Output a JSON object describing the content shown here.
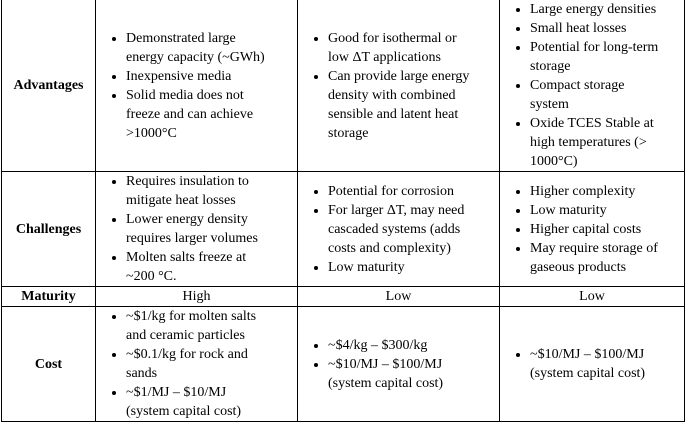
{
  "table": {
    "rows": [
      {
        "id": "advantages",
        "label": "Advantages",
        "cells": [
          {
            "type": "bullets",
            "items": [
              "Demonstrated large\nenergy capacity (~GWh)",
              "Inexpensive media",
              "Solid media does not\nfreeze and can achieve\n>1000°C"
            ]
          },
          {
            "type": "bullets",
            "items": [
              "Good for isothermal or\nlow ΔT applications",
              "Can provide large energy\ndensity with combined\nsensible and latent heat\nstorage"
            ]
          },
          {
            "type": "bullets",
            "items": [
              "Large energy densities",
              "Small heat losses",
              "Potential for long-term\nstorage",
              "Compact storage\nsystem",
              "Oxide TCES Stable at\nhigh temperatures (>\n1000°C)"
            ]
          }
        ]
      },
      {
        "id": "challenges",
        "label": "Challenges",
        "cells": [
          {
            "type": "bullets",
            "items": [
              "Requires insulation to\nmitigate heat losses",
              "Lower energy density\nrequires larger volumes",
              "Molten salts freeze at\n~200 °C."
            ]
          },
          {
            "type": "bullets",
            "items": [
              "Potential for corrosion",
              "For larger ΔT, may need\ncascaded systems (adds\ncosts and complexity)",
              "Low maturity"
            ]
          },
          {
            "type": "bullets",
            "items": [
              "Higher complexity",
              "Low maturity",
              "Higher capital costs",
              "May require storage of\ngaseous products"
            ]
          }
        ]
      },
      {
        "id": "maturity",
        "label": "Maturity",
        "cells": [
          {
            "type": "text",
            "value": "High"
          },
          {
            "type": "text",
            "value": "Low"
          },
          {
            "type": "text",
            "value": "Low"
          }
        ]
      },
      {
        "id": "cost",
        "label": "Cost",
        "cells": [
          {
            "type": "bullets",
            "items": [
              "~$1/kg for molten salts\nand ceramic particles",
              "~$0.1/kg for rock and\nsands",
              "~$1/MJ – $10/MJ\n(system capital cost)"
            ]
          },
          {
            "type": "bullets",
            "items": [
              "~$4/kg – $300/kg",
              "~$10/MJ – $100/MJ\n(system capital cost)"
            ]
          },
          {
            "type": "bullets",
            "items": [
              "~$10/MJ – $100/MJ\n(system capital cost)"
            ]
          }
        ]
      }
    ]
  }
}
